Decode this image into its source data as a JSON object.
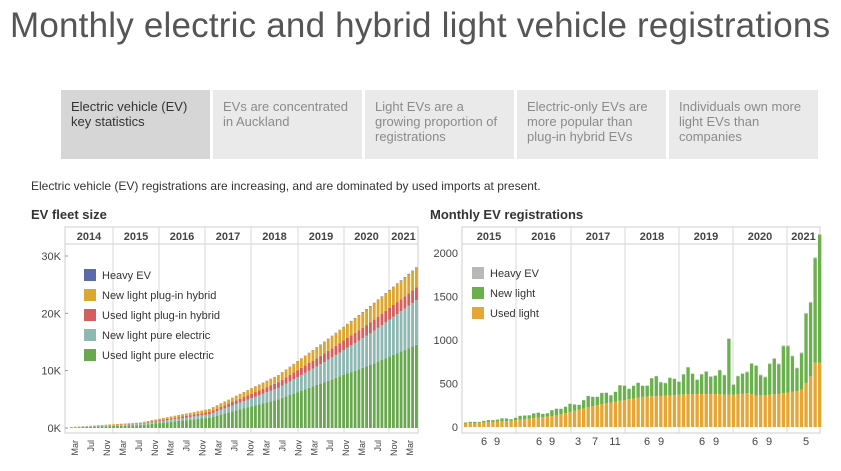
{
  "page": {
    "title": "Monthly electric and hybrid light vehicle registrations",
    "intro": "Electric vehicle (EV) registrations are increasing, and are dominated by used imports at present."
  },
  "tabs": [
    {
      "label": "Electric vehicle (EV) key statistics",
      "active": true
    },
    {
      "label": "EVs are concentrated in Auckland",
      "active": false
    },
    {
      "label": "Light EVs are a growing proportion of registrations",
      "active": false
    },
    {
      "label": "Electric-only EVs are more popular than plug-in hybrid EVs",
      "active": false
    },
    {
      "label": "Individuals own more light EVs than companies",
      "active": false
    }
  ],
  "colors": {
    "heavy_ev": "#5b6aa8",
    "new_phev": "#dca72e",
    "used_phev": "#d35f5f",
    "new_pure": "#8fb8b3",
    "used_pure": "#6aa84f",
    "heavy_ev_monthly": "#b8b8b8",
    "new_light_monthly": "#6ab04c",
    "used_light_monthly": "#e6a634"
  },
  "chart_data": [
    {
      "type": "area",
      "panel_title": "EV fleet size",
      "year_labels": [
        "2014",
        "2015",
        "2016",
        "2017",
        "2018",
        "2019",
        "2020",
        "2021"
      ],
      "x_tick_labels": [
        "Mar",
        "Jul",
        "Nov",
        "Mar",
        "Jul",
        "Nov",
        "Mar",
        "Jul",
        "Nov",
        "Mar",
        "Jul",
        "Nov",
        "Mar",
        "Jul",
        "Nov",
        "Mar",
        "Jul",
        "Nov",
        "Mar",
        "Jul",
        "Nov",
        "Mar"
      ],
      "y_tick_labels": [
        "0K",
        "10K",
        "20K",
        "30K"
      ],
      "ylim": [
        0,
        30000
      ],
      "legend": [
        "Heavy EV",
        "New light plug-in hybrid",
        "Used light plug-in hybrid",
        "New light pure electric",
        "Used light pure electric"
      ],
      "stacked": true,
      "x_start": "2013-12",
      "x_end": "2021-05",
      "series": [
        {
          "name": "Heavy EV",
          "values": [
            [
              0,
              0
            ],
            [
              18,
              10
            ],
            [
              36,
              20
            ],
            [
              54,
              40
            ],
            [
              72,
              60
            ],
            [
              90,
              100
            ]
          ]
        },
        {
          "name": "New light plug-in hybrid",
          "values": [
            [
              0,
              20
            ],
            [
              18,
              150
            ],
            [
              36,
              500
            ],
            [
              54,
              1200
            ],
            [
              66,
              2000
            ],
            [
              78,
              2800
            ],
            [
              90,
              3400
            ]
          ]
        },
        {
          "name": "Used light plug-in hybrid",
          "values": [
            [
              0,
              10
            ],
            [
              18,
              100
            ],
            [
              36,
              400
            ],
            [
              54,
              1000
            ],
            [
              66,
              1500
            ],
            [
              78,
              1900
            ],
            [
              90,
              2200
            ]
          ]
        },
        {
          "name": "New light pure electric",
          "values": [
            [
              0,
              50
            ],
            [
              18,
              200
            ],
            [
              36,
              600
            ],
            [
              54,
              2000
            ],
            [
              66,
              3500
            ],
            [
              78,
              5500
            ],
            [
              90,
              7800
            ]
          ]
        },
        {
          "name": "Used light pure electric",
          "values": [
            [
              0,
              100
            ],
            [
              18,
              500
            ],
            [
              36,
              1800
            ],
            [
              54,
              5000
            ],
            [
              66,
              8000
            ],
            [
              78,
              11000
            ],
            [
              90,
              14500
            ]
          ]
        }
      ],
      "grid": false
    },
    {
      "type": "bar",
      "panel_title": "Monthly EV registrations",
      "year_labels": [
        "2015",
        "2016",
        "2017",
        "2018",
        "2019",
        "2020",
        "2021"
      ],
      "x_tick_labels": [
        "6",
        "9",
        "6",
        "9",
        "3",
        "7",
        "11",
        "6",
        "9",
        "6",
        "9",
        "6",
        "9",
        "5"
      ],
      "y_tick_labels": [
        "0",
        "500",
        "1000",
        "1500",
        "2000"
      ],
      "ylim": [
        0,
        2000
      ],
      "legend": [
        "Heavy EV",
        "New light",
        "Used light"
      ],
      "stacked": true,
      "x_start": "2014-12",
      "x_end": "2021-05",
      "series": [
        {
          "name": "Used light",
          "values": [
            [
              0,
              40
            ],
            [
              12,
              70
            ],
            [
              24,
              130
            ],
            [
              36,
              260
            ],
            [
              48,
              350
            ],
            [
              54,
              360
            ],
            [
              60,
              380
            ],
            [
              66,
              380
            ],
            [
              72,
              370
            ],
            [
              76,
              390
            ],
            [
              78,
              360
            ],
            [
              84,
              380
            ],
            [
              90,
              420
            ],
            [
              95,
              740
            ]
          ]
        },
        {
          "name": "New light",
          "values": [
            [
              0,
              10
            ],
            [
              12,
              30
            ],
            [
              24,
              60
            ],
            [
              36,
              110
            ],
            [
              48,
              160
            ],
            [
              54,
              180
            ],
            [
              60,
              220
            ],
            [
              66,
              240
            ],
            [
              72,
              140
            ],
            [
              76,
              300
            ],
            [
              78,
              260
            ],
            [
              84,
              380
            ],
            [
              90,
              440
            ],
            [
              95,
              1200
            ]
          ]
        },
        {
          "name": "Heavy EV",
          "values": [
            [
              0,
              0
            ],
            [
              60,
              5
            ],
            [
              95,
              10
            ]
          ]
        }
      ],
      "grid": false
    }
  ]
}
